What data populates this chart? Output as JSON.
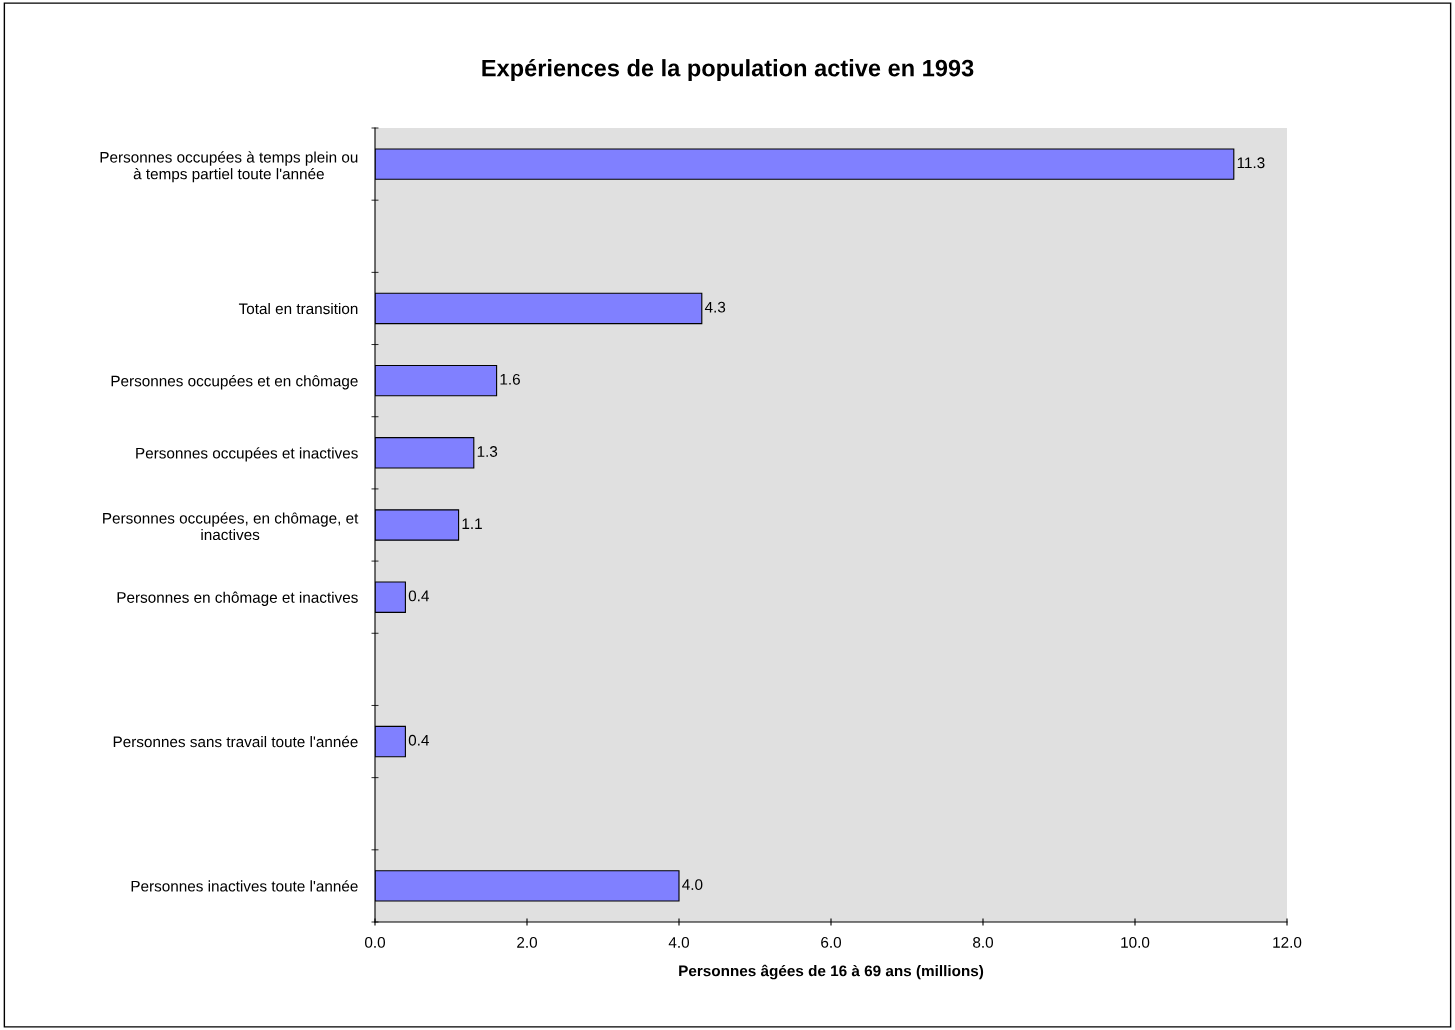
{
  "chart_data": {
    "type": "bar",
    "orientation": "horizontal",
    "title": "Expériences de la population active en 1993",
    "xlabel": "Personnes âgées de 16 à 69 ans (millions)",
    "categories": [
      "Personnes occupées à temps plein ou\nà temps partiel toute l'année",
      null,
      "Total en transition",
      "Personnes occupées et en chômage",
      "Personnes occupées et inactives",
      "Personnes occupées, en chômage, et\ninactives",
      "Personnes en chômage et inactives",
      null,
      "Personnes sans travail toute l'année",
      null,
      "Personnes inactives toute l'année"
    ],
    "values": [
      11.3,
      null,
      4.3,
      1.6,
      1.3,
      1.1,
      0.4,
      null,
      0.4,
      null,
      4.0
    ],
    "color": "#8080ff",
    "xlim": [
      0,
      12
    ],
    "xticks": [
      {
        "value": 0,
        "label": "0.0"
      },
      {
        "value": 2,
        "label": "2.0"
      },
      {
        "value": 4,
        "label": "4.0"
      },
      {
        "value": 6,
        "label": "6.0"
      },
      {
        "value": 8,
        "label": "8.0"
      },
      {
        "value": 10,
        "label": "10.0"
      },
      {
        "value": 12,
        "label": "12.0"
      }
    ],
    "value_labels": [
      "11.3",
      null,
      "4.3",
      "1.6",
      "1.3",
      "1.1",
      "0.4",
      null,
      "0.4",
      null,
      "4.0"
    ],
    "grid": false,
    "legend": false
  }
}
